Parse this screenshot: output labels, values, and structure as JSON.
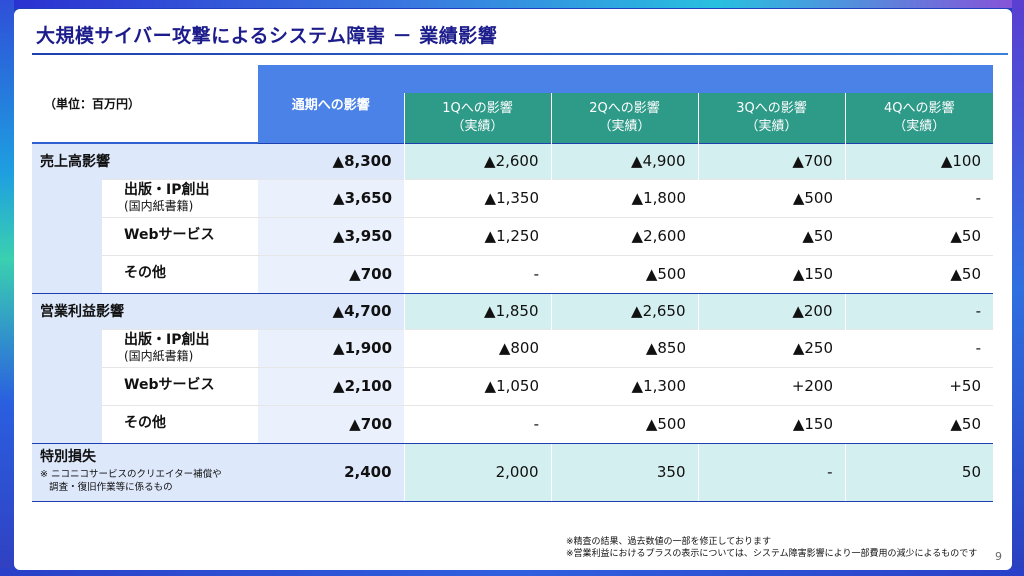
{
  "title": "大規模サイバー攻撃によるシステム障害 － 業績影響",
  "table": {
    "unit_label": "（単位：百万円）",
    "fy_header": "通期への影響",
    "quarter_headers": [
      {
        "line1": "1Qへの影響",
        "line2": "（実績）"
      },
      {
        "line1": "2Qへの影響",
        "line2": "（実績）"
      },
      {
        "line1": "3Qへの影響",
        "line2": "（実績）"
      },
      {
        "line1": "4Qへの影響",
        "line2": "（実績）"
      }
    ],
    "sales": {
      "label": "売上高影響",
      "fy": "▲8,300",
      "q": [
        "▲2,600",
        "▲4,900",
        "▲700",
        "▲100"
      ],
      "rows": [
        {
          "label": "出版・IP創出",
          "note": "(国内紙書籍)",
          "fy": "▲3,650",
          "q": [
            "▲1,350",
            "▲1,800",
            "▲500",
            "-"
          ]
        },
        {
          "label": "Webサービス",
          "note": "",
          "fy": "▲3,950",
          "q": [
            "▲1,250",
            "▲2,600",
            "▲50",
            "▲50"
          ]
        },
        {
          "label": "その他",
          "note": "",
          "fy": "▲700",
          "q": [
            "-",
            "▲500",
            "▲150",
            "▲50"
          ]
        }
      ]
    },
    "profit": {
      "label": "営業利益影響",
      "fy": "▲4,700",
      "q": [
        "▲1,850",
        "▲2,650",
        "▲200",
        "-"
      ],
      "rows": [
        {
          "label": "出版・IP創出",
          "note": "(国内紙書籍)",
          "fy": "▲1,900",
          "q": [
            "▲800",
            "▲850",
            "▲250",
            "-"
          ]
        },
        {
          "label": "Webサービス",
          "note": "",
          "fy": "▲2,100",
          "q": [
            "▲1,050",
            "▲1,300",
            "+200",
            "+50"
          ]
        },
        {
          "label": "その他",
          "note": "",
          "fy": "▲700",
          "q": [
            "-",
            "▲500",
            "▲150",
            "▲50"
          ]
        }
      ]
    },
    "special_loss": {
      "label": "特別損失",
      "note_line1": "※ ニコニコサービスのクリエイター補償や",
      "note_line2": "調査・復旧作業等に係るもの",
      "fy": "2,400",
      "q": [
        "2,000",
        "350",
        "-",
        "50"
      ]
    }
  },
  "footnotes": [
    "※精査の結果、過去数値の一部を修正しております",
    "※営業利益におけるプラスの表示については、システム障害影響により一部費用の減少によるものです"
  ],
  "page_number": "9"
}
